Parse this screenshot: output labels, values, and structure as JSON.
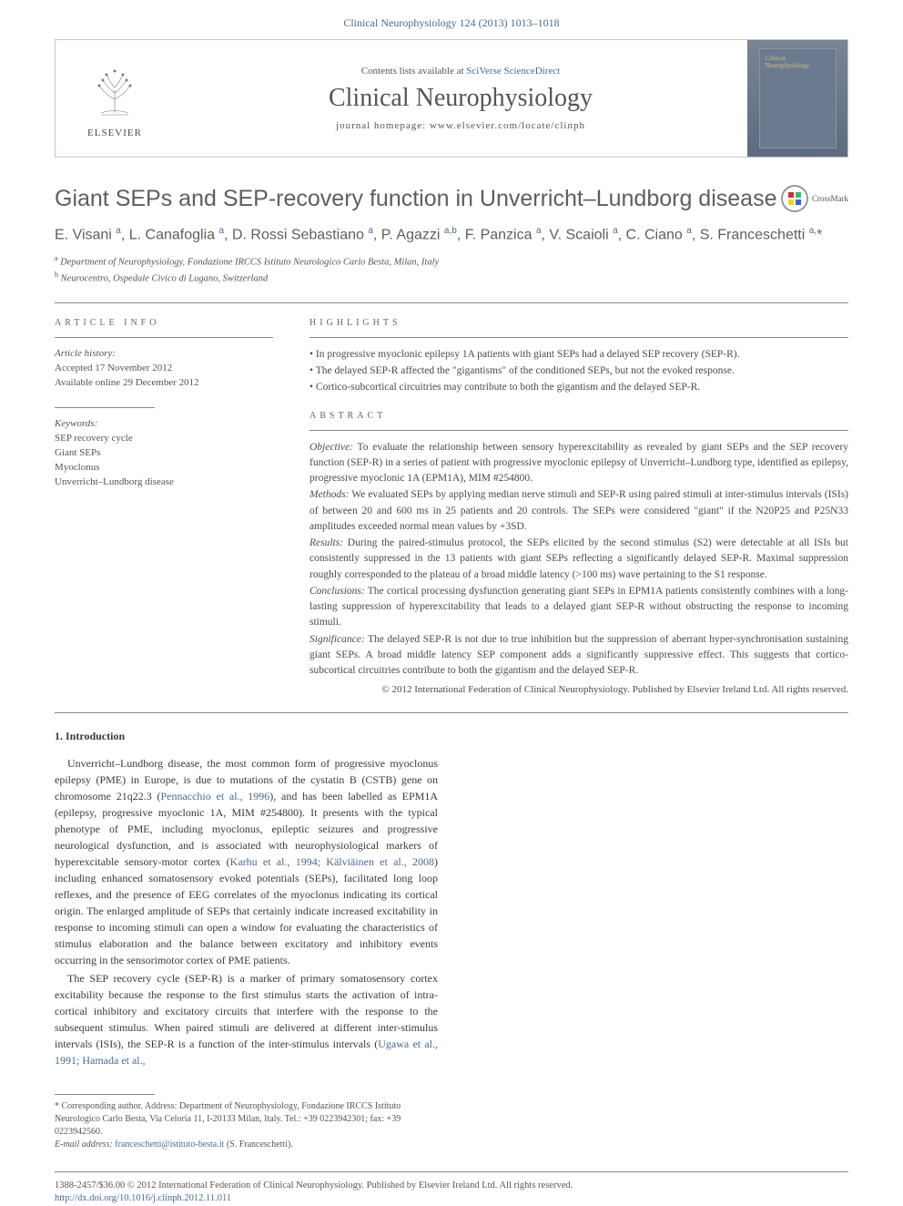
{
  "header": {
    "citation": "Clinical Neurophysiology 124 (2013) 1013–1018"
  },
  "journal_box": {
    "publisher": "ELSEVIER",
    "contents_prefix": "Contents lists available at ",
    "contents_link": "SciVerse ScienceDirect",
    "journal_name": "Clinical Neurophysiology",
    "homepage_prefix": "journal homepage: ",
    "homepage": "www.elsevier.com/locate/clinph"
  },
  "article": {
    "title": "Giant SEPs and SEP-recovery function in Unverricht–Lundborg disease",
    "crossmark": "CrossMark",
    "authors_html": "E. Visani <sup>a</sup>, L. Canafoglia <sup>a</sup>, D. Rossi Sebastiano <sup>a</sup>, P. Agazzi <sup>a,b</sup>, F. Panzica <sup>a</sup>, V. Scaioli <sup>a</sup>, C. Ciano <sup>a</sup>, S. Franceschetti <sup>a,</sup><span class='asterisk'>*</span>",
    "affiliations": [
      {
        "sup": "a",
        "text": "Department of Neurophysiology, Fondazione IRCCS Istituto Neurologico Carlo Besta, Milan, Italy"
      },
      {
        "sup": "b",
        "text": "Neurocentro, Ospedale Civico di Lugano, Switzerland"
      }
    ]
  },
  "meta": {
    "info_label": "ARTICLE INFO",
    "history_label": "Article history:",
    "history": [
      "Accepted 17 November 2012",
      "Available online 29 December 2012"
    ],
    "keywords_label": "Keywords:",
    "keywords": [
      "SEP recovery cycle",
      "Giant SEPs",
      "Myoclonus",
      "Unverricht–Lundborg disease"
    ],
    "highlights_label": "HIGHLIGHTS",
    "highlights": [
      "In progressive myoclonic epilepsy 1A patients with giant SEPs had a delayed SEP recovery (SEP-R).",
      "The delayed SEP-R affected the \"gigantisms\" of the conditioned SEPs, but not the evoked response.",
      "Cortico-subcortical circuitries may contribute to both the gigantism and the delayed SEP-R."
    ],
    "abstract_label": "ABSTRACT",
    "abstract": {
      "objective_label": "Objective:",
      "objective": " To evaluate the relationship between sensory hyperexcitability as revealed by giant SEPs and the SEP recovery function (SEP-R) in a series of patient with progressive myoclonic epilepsy of Unverricht–Lundborg type, identified as epilepsy, progressive myoclonic 1A (EPM1A), MIM #254800.",
      "methods_label": "Methods:",
      "methods": " We evaluated SEPs by applying median nerve stimuli and SEP-R using paired stimuli at inter-stimulus intervals (ISIs) of between 20 and 600 ms in 25 patients and 20 controls. The SEPs were considered \"giant\" if the N20P25 and P25N33 amplitudes exceeded normal mean values by +3SD.",
      "results_label": "Results:",
      "results": " During the paired-stimulus protocol, the SEPs elicited by the second stimulus (S2) were detectable at all ISIs but consistently suppressed in the 13 patients with giant SEPs reflecting a significantly delayed SEP-R. Maximal suppression roughly corresponded to the plateau of a broad middle latency (>100 ms) wave pertaining to the S1 response.",
      "conclusions_label": "Conclusions:",
      "conclusions": " The cortical processing dysfunction generating giant SEPs in EPM1A patients consistently combines with a long-lasting suppression of hyperexcitability that leads to a delayed giant SEP-R without obstructing the response to incoming stimuli.",
      "significance_label": "Significance:",
      "significance": " The delayed SEP-R is not due to true inhibition but the suppression of aberrant hyper-synchronisation sustaining giant SEPs. A broad middle latency SEP component adds a significantly suppressive effect. This suggests that cortico-subcortical circuitries contribute to both the gigantism and the delayed SEP-R."
    },
    "copyright": "© 2012 International Federation of Clinical Neurophysiology. Published by Elsevier Ireland Ltd. All rights reserved."
  },
  "intro": {
    "heading": "1. Introduction",
    "p1_pre": "Unverricht–Lundborg disease, the most common form of progressive myoclonus epilepsy (PME) in Europe, is due to mutations of the cystatin B (CSTB) gene on chromosome 21q22.3 (",
    "p1_link1": "Pennacchio et al., 1996",
    "p1_mid": "), and has been labelled as EPM1A (epilepsy, progressive myoclonic 1A, MIM #254800). It presents with the typical phenotype of PME, including myoclonus, epileptic seizures and progressive neurological dysfunction, and is associated with neurophysiological markers of hyperexcitable sensory-motor cortex (",
    "p1_link2": "Karhu et al., 1994; Kälviäinen et al., 2008",
    "p1_post": ") including enhanced somatosensory evoked potentials (SEPs), facilitated long loop reflexes, and the presence of EEG correlates of the myoclonus indicating its cortical origin. The enlarged amplitude of SEPs that certainly indicate increased excitability in response to incoming stimuli can open a window for evaluating the characteristics of stimulus elaboration and the balance between excitatory and inhibitory events occurring in the sensorimotor cortex of PME patients.",
    "p2_pre": "The SEP recovery cycle (SEP-R) is a marker of primary somatosensory cortex excitability because the response to the first stimulus starts the activation of intra-cortical inhibitory and excitatory circuits that interfere with the response to the subsequent stimulus. When paired stimuli are delivered at different inter-stimulus intervals (ISIs), the SEP-R is a function of the inter-stimulus intervals (",
    "p2_link": "Ugawa et al., 1991; Hamada et al.,"
  },
  "footnotes": {
    "corr_label": "* Corresponding author. ",
    "corr_text": "Address: Department of Neurophysiology, Fondazione IRCCS Istituto Neurologico Carlo Besta, Via Celoria 11, I-20133 Milan, Italy. Tel.: +39 0223942301; fax: +39 0223942560.",
    "email_label": "E-mail address: ",
    "email": "franceschetti@istituto-besta.it",
    "email_owner": " (S. Franceschetti)."
  },
  "footer": {
    "issn": "1388-2457/$36.00 © 2012 International Federation of Clinical Neurophysiology. Published by Elsevier Ireland Ltd. All rights reserved.",
    "doi": "http://dx.doi.org/10.1016/j.clinph.2012.11.011"
  },
  "colors": {
    "link": "#4a6a8f",
    "border": "#888888",
    "body_text": "#3a3a3a"
  }
}
